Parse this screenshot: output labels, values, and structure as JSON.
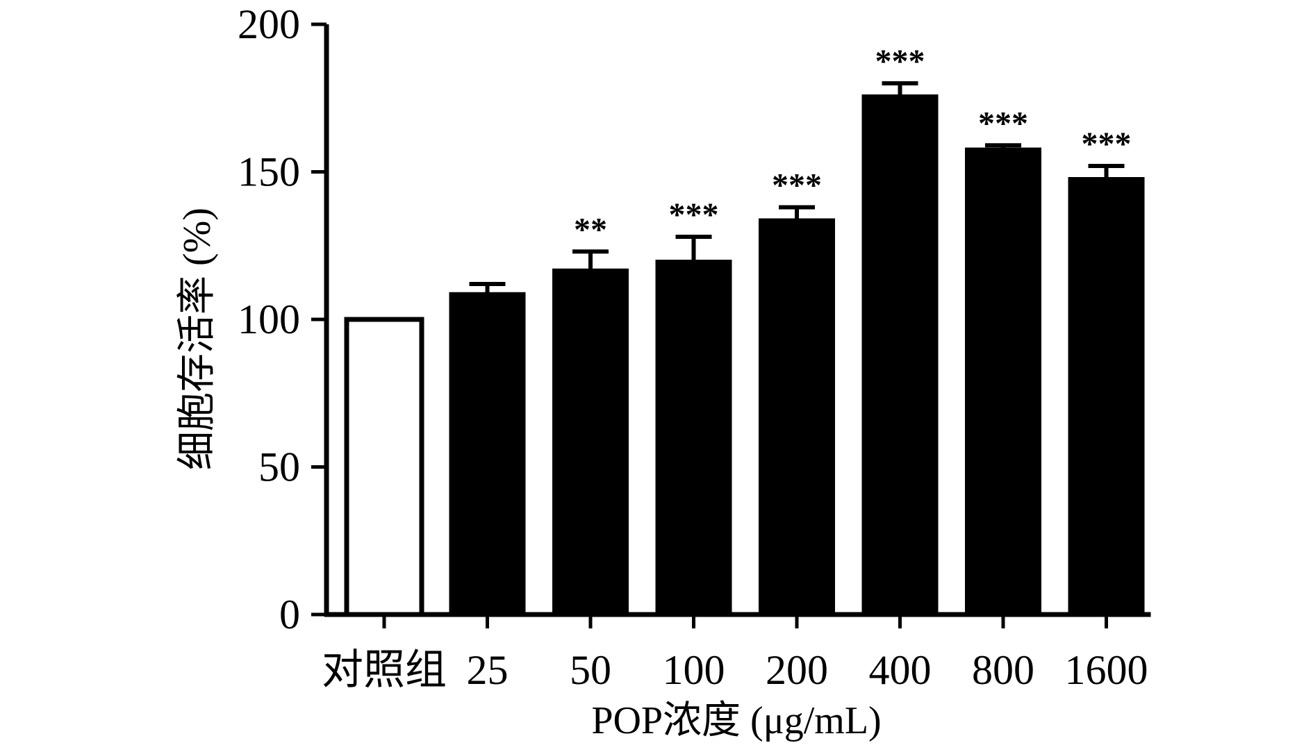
{
  "chart_data": {
    "type": "bar",
    "title": "",
    "xlabel": "POP浓度 (μg/mL)",
    "ylabel": "细胞存活率 (%)",
    "ylim": [
      0,
      200
    ],
    "yticks": [
      0,
      50,
      100,
      150,
      200
    ],
    "categories": [
      "对照组",
      "25",
      "50",
      "100",
      "200",
      "400",
      "800",
      "1600"
    ],
    "values": [
      100,
      109,
      117,
      120,
      134,
      176,
      158,
      148
    ],
    "errors": [
      0,
      3,
      6,
      8,
      4,
      4,
      1,
      4
    ],
    "significance": [
      "",
      "",
      "**",
      "***",
      "***",
      "***",
      "***",
      "***"
    ],
    "fills": [
      "#ffffff",
      "#000000",
      "#000000",
      "#000000",
      "#000000",
      "#000000",
      "#000000",
      "#000000"
    ],
    "grid": false,
    "legend": "none"
  }
}
